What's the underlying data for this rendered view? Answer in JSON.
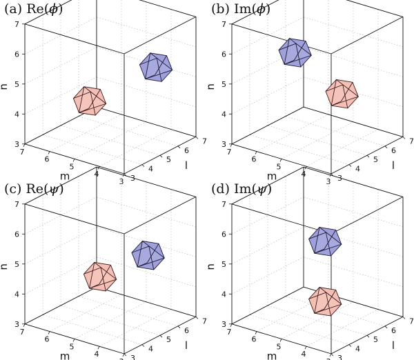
{
  "figure": {
    "panels": [
      {
        "label_prefix": "(a) Re(",
        "label_symbol": "ϕ",
        "label_suffix": ")",
        "shapes": [
          {
            "name": "blue",
            "color": "#9fa0dc",
            "stroke": "#1a1a33",
            "center": {
              "l": 5.6,
              "m": 3.6,
              "n": 5.6
            }
          },
          {
            "name": "pink",
            "color": "#f4bfb5",
            "stroke": "#3a1a1a",
            "center": {
              "l": 4.4,
              "m": 5.4,
              "n": 4.4
            }
          }
        ]
      },
      {
        "label_prefix": "(b) Im(",
        "label_symbol": "ϕ",
        "label_suffix": ")",
        "shapes": [
          {
            "name": "blue",
            "color": "#9fa0dc",
            "stroke": "#1a1a33",
            "center": {
              "l": 5.0,
              "m": 5.9,
              "n": 5.7
            }
          },
          {
            "name": "pink",
            "color": "#f4bfb5",
            "stroke": "#3a1a1a",
            "center": {
              "l": 5.4,
              "m": 4.3,
              "n": 4.6
            }
          }
        ]
      },
      {
        "label_prefix": "(c) Re(",
        "label_symbol": "ψ",
        "label_suffix": ")",
        "shapes": [
          {
            "name": "blue",
            "color": "#9fa0dc",
            "stroke": "#1a1a33",
            "center": {
              "l": 5.3,
              "m": 3.7,
              "n": 5.4
            }
          },
          {
            "name": "pink",
            "color": "#f4bfb5",
            "stroke": "#3a1a1a",
            "center": {
              "l": 4.7,
              "m": 5.2,
              "n": 4.5
            }
          }
        ]
      },
      {
        "label_prefix": "(d) Im(",
        "label_symbol": "ψ",
        "label_suffix": ")",
        "shapes": [
          {
            "name": "blue",
            "color": "#9fa0dc",
            "stroke": "#1a1a33",
            "center": {
              "l": 4.6,
              "m": 4.4,
              "n": 5.9
            }
          },
          {
            "name": "pink",
            "color": "#f4bfb5",
            "stroke": "#3a1a1a",
            "center": {
              "l": 4.6,
              "m": 4.4,
              "n": 3.9
            }
          }
        ]
      }
    ],
    "axes": {
      "n_label": "n",
      "m_label": "m",
      "l_label": "l",
      "n_ticks": [
        "3",
        "4",
        "5",
        "6",
        "7"
      ],
      "m_ticks": [
        "7",
        "6",
        "5",
        "4",
        "3"
      ],
      "l_ticks": [
        "3",
        "4",
        "5",
        "6",
        "7"
      ],
      "range": [
        3,
        7
      ]
    },
    "colors": {
      "grid": "#b9b9b9",
      "box": "#111111"
    }
  }
}
